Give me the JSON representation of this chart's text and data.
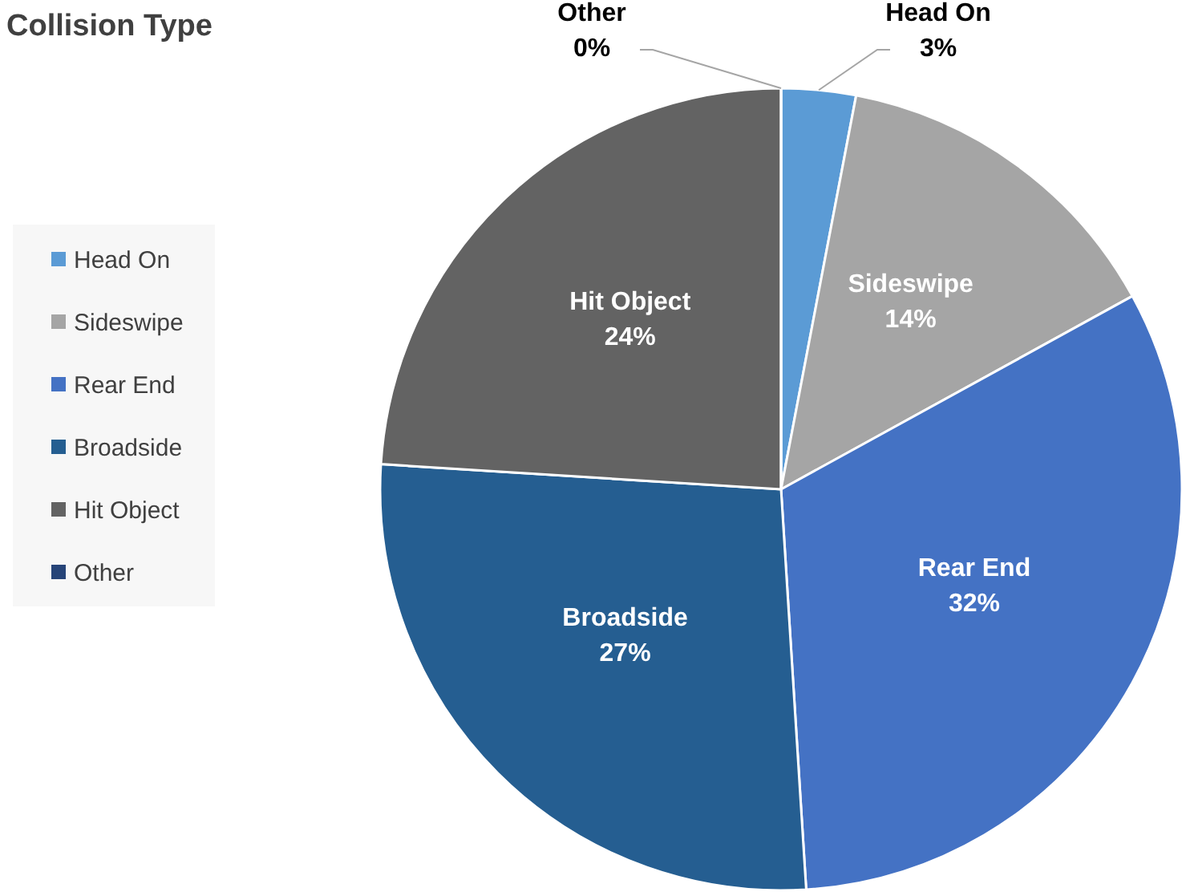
{
  "chart_data": {
    "type": "pie",
    "title": "Collision Type",
    "categories": [
      "Head On",
      "Sideswipe",
      "Rear End",
      "Broadside",
      "Hit Object",
      "Other"
    ],
    "values": [
      3,
      14,
      32,
      27,
      24,
      0
    ],
    "value_labels": [
      "3%",
      "14%",
      "32%",
      "27%",
      "24%",
      "0%"
    ],
    "colors": [
      "#5b9bd5",
      "#a5a5a5",
      "#4472c4",
      "#255e91",
      "#636363",
      "#264478"
    ],
    "legend": "left"
  }
}
